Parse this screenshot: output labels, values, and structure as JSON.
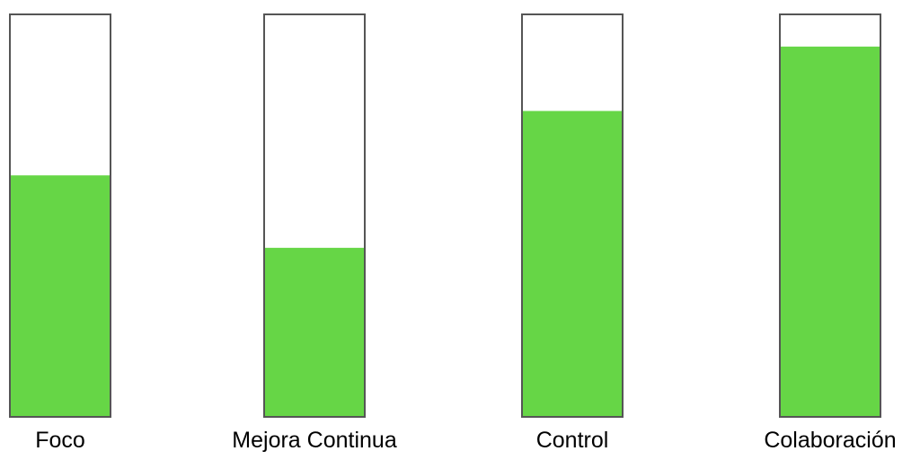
{
  "chart_data": {
    "type": "bar",
    "categories": [
      "Foco",
      "Mejora Continua",
      "Control",
      "Colaboración"
    ],
    "values": [
      60,
      42,
      76,
      92
    ],
    "ylim": [
      0,
      100
    ],
    "grid": false,
    "legend": "none",
    "title": "",
    "xlabel": "",
    "ylabel": ""
  },
  "colors": {
    "fill": "#66d646",
    "outline": "#555555",
    "background": "#ffffff"
  }
}
